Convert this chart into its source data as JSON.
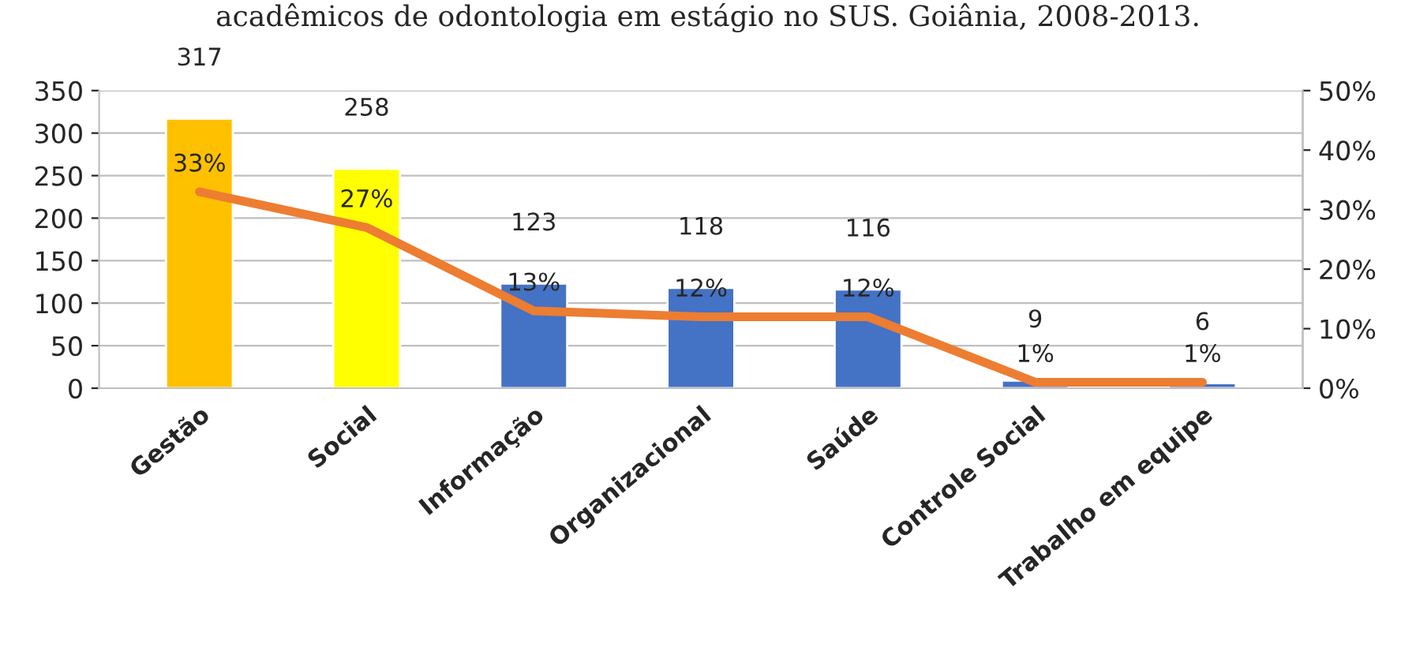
{
  "chart_data": {
    "type": "bar",
    "title": "acadêmicos de odontologia em estágio no SUS. Goiânia, 2008-2013.",
    "categories": [
      "Gestão",
      "Social",
      "Informação",
      "Organizacional",
      "Saúde",
      "Controle Social",
      "Trabalho em equipe"
    ],
    "series": [
      {
        "colors": [
          "#ffc000",
          "#ffff00",
          "#4472c4",
          "#4472c4",
          "#4472c4",
          "#4472c4",
          "#4472c4"
        ],
        "values": [
          317,
          258,
          123,
          118,
          116,
          9,
          6
        ],
        "data_labels": true
      },
      {
        "type": "line",
        "axis": "y2",
        "color": "#ed7d31",
        "values": [
          33,
          27,
          13,
          12,
          12,
          1,
          1
        ],
        "value_labels": [
          "33%",
          "27%",
          "13%",
          "12%",
          "12%",
          "1%",
          "1%"
        ]
      }
    ],
    "ylim": [
      0,
      350
    ],
    "yticks": [
      0,
      50,
      100,
      150,
      200,
      250,
      300,
      350
    ],
    "y2lim": [
      0,
      50
    ],
    "y2ticks": [
      {
        "value": 0,
        "label": "0%"
      },
      {
        "value": 10,
        "label": "10%"
      },
      {
        "value": 20,
        "label": "20%"
      },
      {
        "value": 30,
        "label": "30%"
      },
      {
        "value": 40,
        "label": "40%"
      },
      {
        "value": 50,
        "label": "50%"
      }
    ],
    "grid": "y"
  }
}
